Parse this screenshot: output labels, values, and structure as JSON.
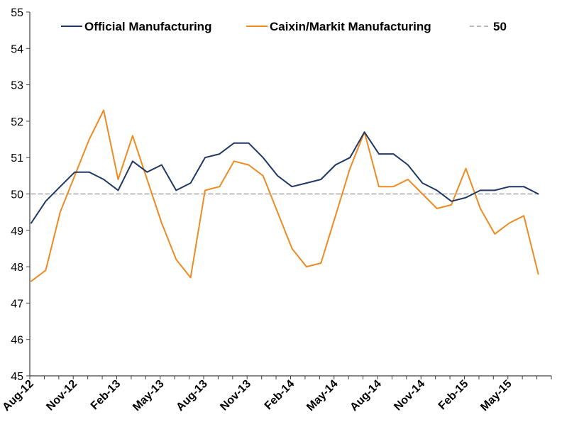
{
  "chart_data": {
    "type": "line",
    "title": "",
    "xlabel": "",
    "ylabel": "",
    "ylim": [
      45,
      55
    ],
    "yticks": [
      "45",
      "46",
      "47",
      "48",
      "49",
      "50",
      "51",
      "52",
      "53",
      "54",
      "55"
    ],
    "grid": false,
    "legend_position": "top",
    "x_tick_labels": [
      "Aug-12",
      "Nov-12",
      "Feb-13",
      "May-13",
      "Aug-13",
      "Nov-13",
      "Feb-14",
      "May-14",
      "Aug-14",
      "Nov-14",
      "Feb-15",
      "May-15"
    ],
    "x": [
      "Aug-12",
      "Sep-12",
      "Oct-12",
      "Nov-12",
      "Dec-12",
      "Jan-13",
      "Feb-13",
      "Mar-13",
      "Apr-13",
      "May-13",
      "Jun-13",
      "Jul-13",
      "Aug-13",
      "Sep-13",
      "Oct-13",
      "Nov-13",
      "Dec-13",
      "Jan-14",
      "Feb-14",
      "Mar-14",
      "Apr-14",
      "May-14",
      "Jun-14",
      "Jul-14",
      "Aug-14",
      "Sep-14",
      "Oct-14",
      "Nov-14",
      "Dec-14",
      "Jan-15",
      "Feb-15",
      "Mar-15",
      "Apr-15",
      "May-15",
      "Jun-15",
      "Jul-15"
    ],
    "series": [
      {
        "name": "Official Manufacturing",
        "color": "#1f3864",
        "values": [
          49.2,
          49.8,
          50.2,
          50.6,
          50.6,
          50.4,
          50.1,
          50.9,
          50.6,
          50.8,
          50.1,
          50.3,
          51.0,
          51.1,
          51.4,
          51.4,
          51.0,
          50.5,
          50.2,
          50.3,
          50.4,
          50.8,
          51.0,
          51.7,
          51.1,
          51.1,
          50.8,
          50.3,
          50.1,
          49.8,
          49.9,
          50.1,
          50.1,
          50.2,
          50.2,
          50.0
        ]
      },
      {
        "name": "Caixin/Markit Manufacturing",
        "color": "#ed8b22",
        "values": [
          47.6,
          47.9,
          49.5,
          50.5,
          51.5,
          52.3,
          50.4,
          51.6,
          50.4,
          49.2,
          48.2,
          47.7,
          50.1,
          50.2,
          50.9,
          50.8,
          50.5,
          49.5,
          48.5,
          48.0,
          48.1,
          49.4,
          50.7,
          51.7,
          50.2,
          50.2,
          50.4,
          50.0,
          49.6,
          49.7,
          50.7,
          49.6,
          48.9,
          49.2,
          49.4,
          47.8
        ]
      },
      {
        "name": "50",
        "color": "#a6a6a6",
        "style": "dashed",
        "values": [
          50,
          50,
          50,
          50,
          50,
          50,
          50,
          50,
          50,
          50,
          50,
          50,
          50,
          50,
          50,
          50,
          50,
          50,
          50,
          50,
          50,
          50,
          50,
          50,
          50,
          50,
          50,
          50,
          50,
          50,
          50,
          50,
          50,
          50,
          50,
          50
        ]
      }
    ]
  }
}
